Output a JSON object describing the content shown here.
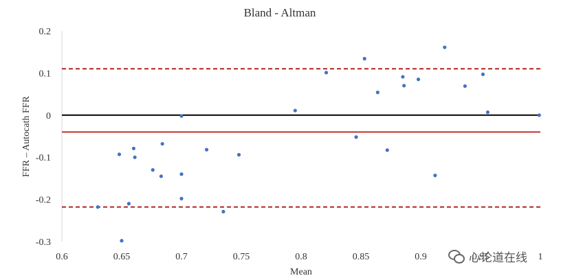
{
  "chart_data": {
    "type": "scatter",
    "title": "Bland - Altman",
    "xlabel": "Mean",
    "ylabel": "FFR – Autocath FFR",
    "xlim": [
      0.6,
      1.0
    ],
    "ylim": [
      -0.3,
      0.2
    ],
    "xticks": [
      "0.6",
      "0.65",
      "0.7",
      "0.75",
      "0.8",
      "0.85",
      "0.9",
      "0.95",
      "1"
    ],
    "yticks": [
      "0.2",
      "0.1",
      "0",
      "-0.1",
      "-0.2",
      "-0.3"
    ],
    "grid": false,
    "reference_lines": [
      {
        "y": 0.11,
        "style": "dashed",
        "color": "#b22222"
      },
      {
        "y": 0,
        "style": "solid",
        "color": "#000000"
      },
      {
        "y": -0.04,
        "style": "solid",
        "color": "#c0302b"
      },
      {
        "y": -0.218,
        "style": "dashed",
        "color": "#b22222"
      }
    ],
    "point_color": "#4472c4",
    "points": [
      [
        0.63,
        -0.218
      ],
      [
        0.648,
        -0.093
      ],
      [
        0.65,
        -0.298
      ],
      [
        0.656,
        -0.21
      ],
      [
        0.66,
        -0.079
      ],
      [
        0.661,
        -0.1
      ],
      [
        0.676,
        -0.13
      ],
      [
        0.683,
        -0.145
      ],
      [
        0.684,
        -0.068
      ],
      [
        0.7,
        -0.002
      ],
      [
        0.7,
        -0.14
      ],
      [
        0.7,
        -0.198
      ],
      [
        0.721,
        -0.082
      ],
      [
        0.735,
        -0.229
      ],
      [
        0.748,
        -0.094
      ],
      [
        0.795,
        0.011
      ],
      [
        0.821,
        0.101
      ],
      [
        0.846,
        -0.052
      ],
      [
        0.853,
        0.134
      ],
      [
        0.864,
        0.054
      ],
      [
        0.872,
        -0.083
      ],
      [
        0.885,
        0.091
      ],
      [
        0.886,
        0.07
      ],
      [
        0.898,
        0.085
      ],
      [
        0.912,
        -0.143
      ],
      [
        0.92,
        0.161
      ],
      [
        0.937,
        0.069
      ],
      [
        0.952,
        0.097
      ],
      [
        0.956,
        0.007
      ],
      [
        0.999,
        0.0
      ]
    ]
  },
  "watermark": {
    "icon": "wechat-icon",
    "text": "心论道在线"
  }
}
